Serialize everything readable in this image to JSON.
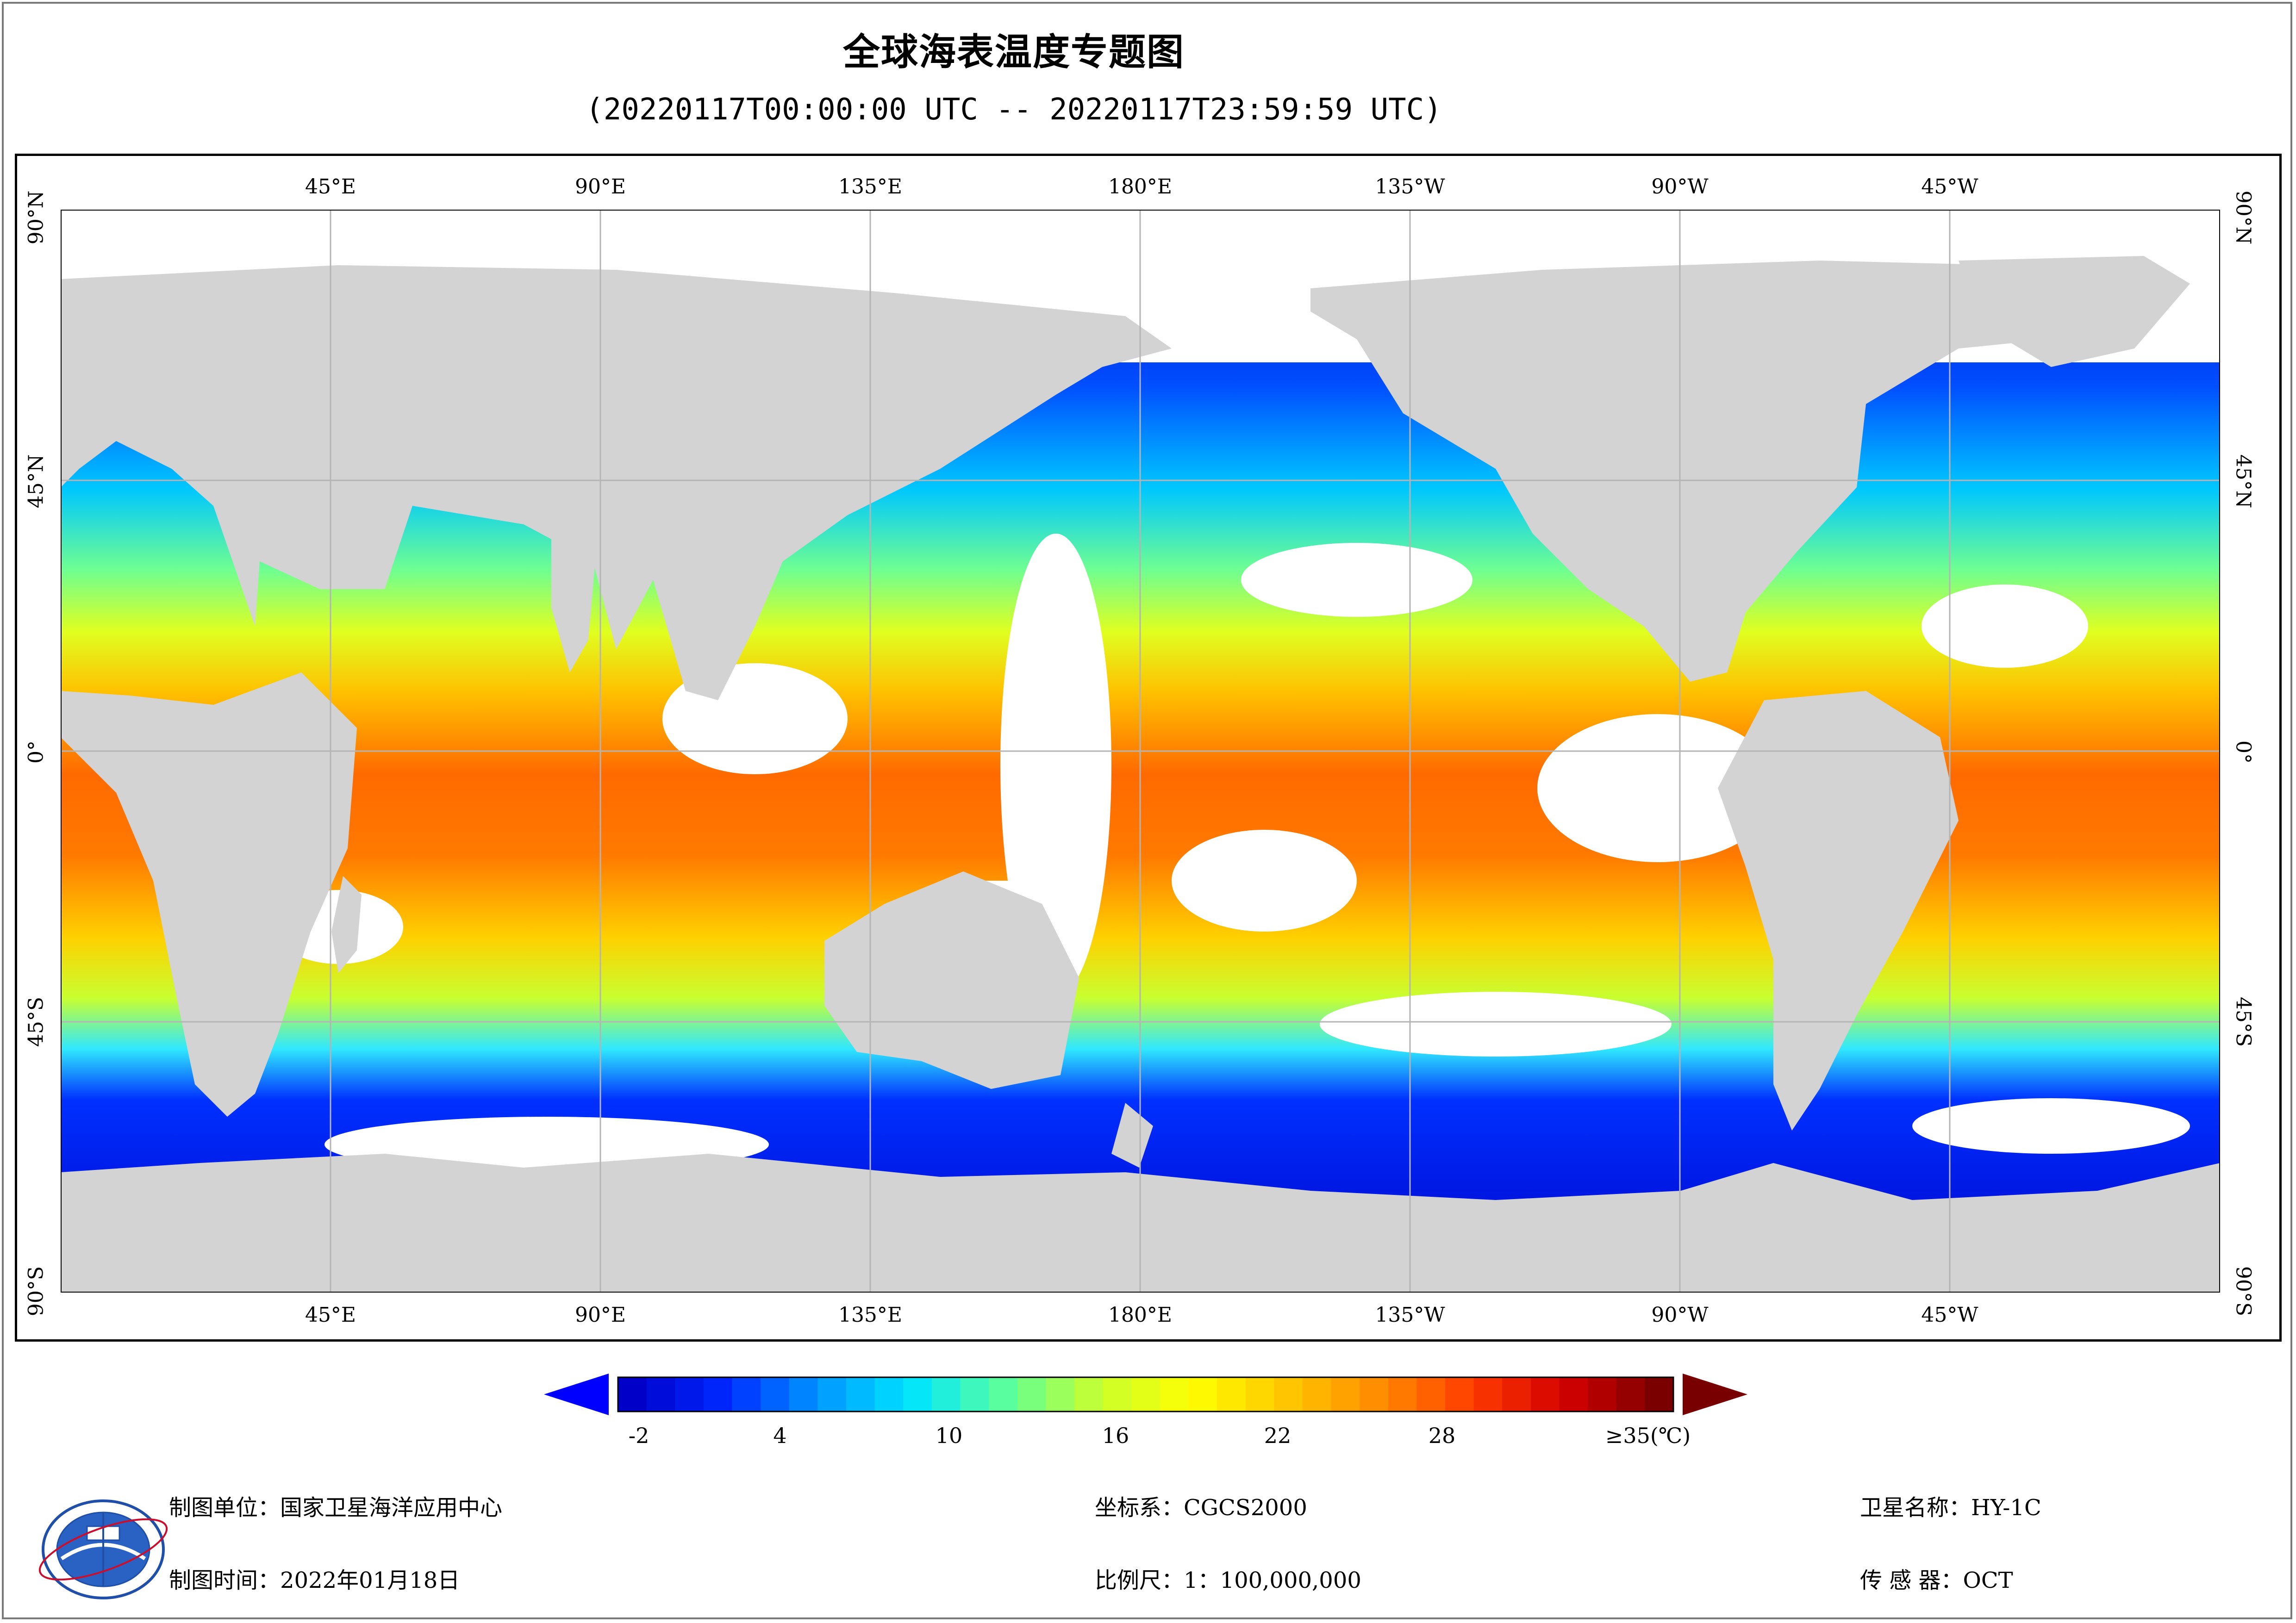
{
  "title": "全球海表温度专题图",
  "subtitle": "(20220117T00:00:00 UTC -- 20220117T23:59:59 UTC)",
  "axes": {
    "longitude_labels": [
      "45°E",
      "90°E",
      "135°E",
      "180°E",
      "135°W",
      "90°W",
      "45°W"
    ],
    "latitude_labels": [
      "90°N",
      "45°N",
      "0°",
      "45°S",
      "90°S"
    ]
  },
  "legend": {
    "unit": "(℃)",
    "tick_labels": [
      "-2",
      "4",
      "10",
      "16",
      "22",
      "28",
      "≥35(℃)"
    ],
    "tick_values": [
      -2,
      4,
      10,
      16,
      22,
      28,
      35
    ],
    "min": -2,
    "max": 35,
    "colors": [
      "#0000c8",
      "#0028ff",
      "#0096ff",
      "#00e6ff",
      "#5cff9c",
      "#c8ff2e",
      "#ffff00",
      "#ffc800",
      "#ff8c00",
      "#ff3c00",
      "#d20000",
      "#7a0000"
    ],
    "under_color": "#0000ff",
    "over_color": "#780000"
  },
  "map_colors": {
    "land": "#d3d3d3",
    "no_data": "#ffffff",
    "grid": "#b4b4b4"
  },
  "footer": {
    "org_label": "制图单位：",
    "org_value": "国家卫星海洋应用中心",
    "time_label": "制图时间：",
    "time_value": "2022年01月18日",
    "crs_label": "坐标系：",
    "crs_value": "CGCS2000",
    "scale_label": "比例尺：",
    "scale_value": "1：100,000,000",
    "satellite_label": "卫星名称：",
    "satellite_value": "HY-1C",
    "sensor_label": "传 感 器：",
    "sensor_value": "OCT"
  }
}
